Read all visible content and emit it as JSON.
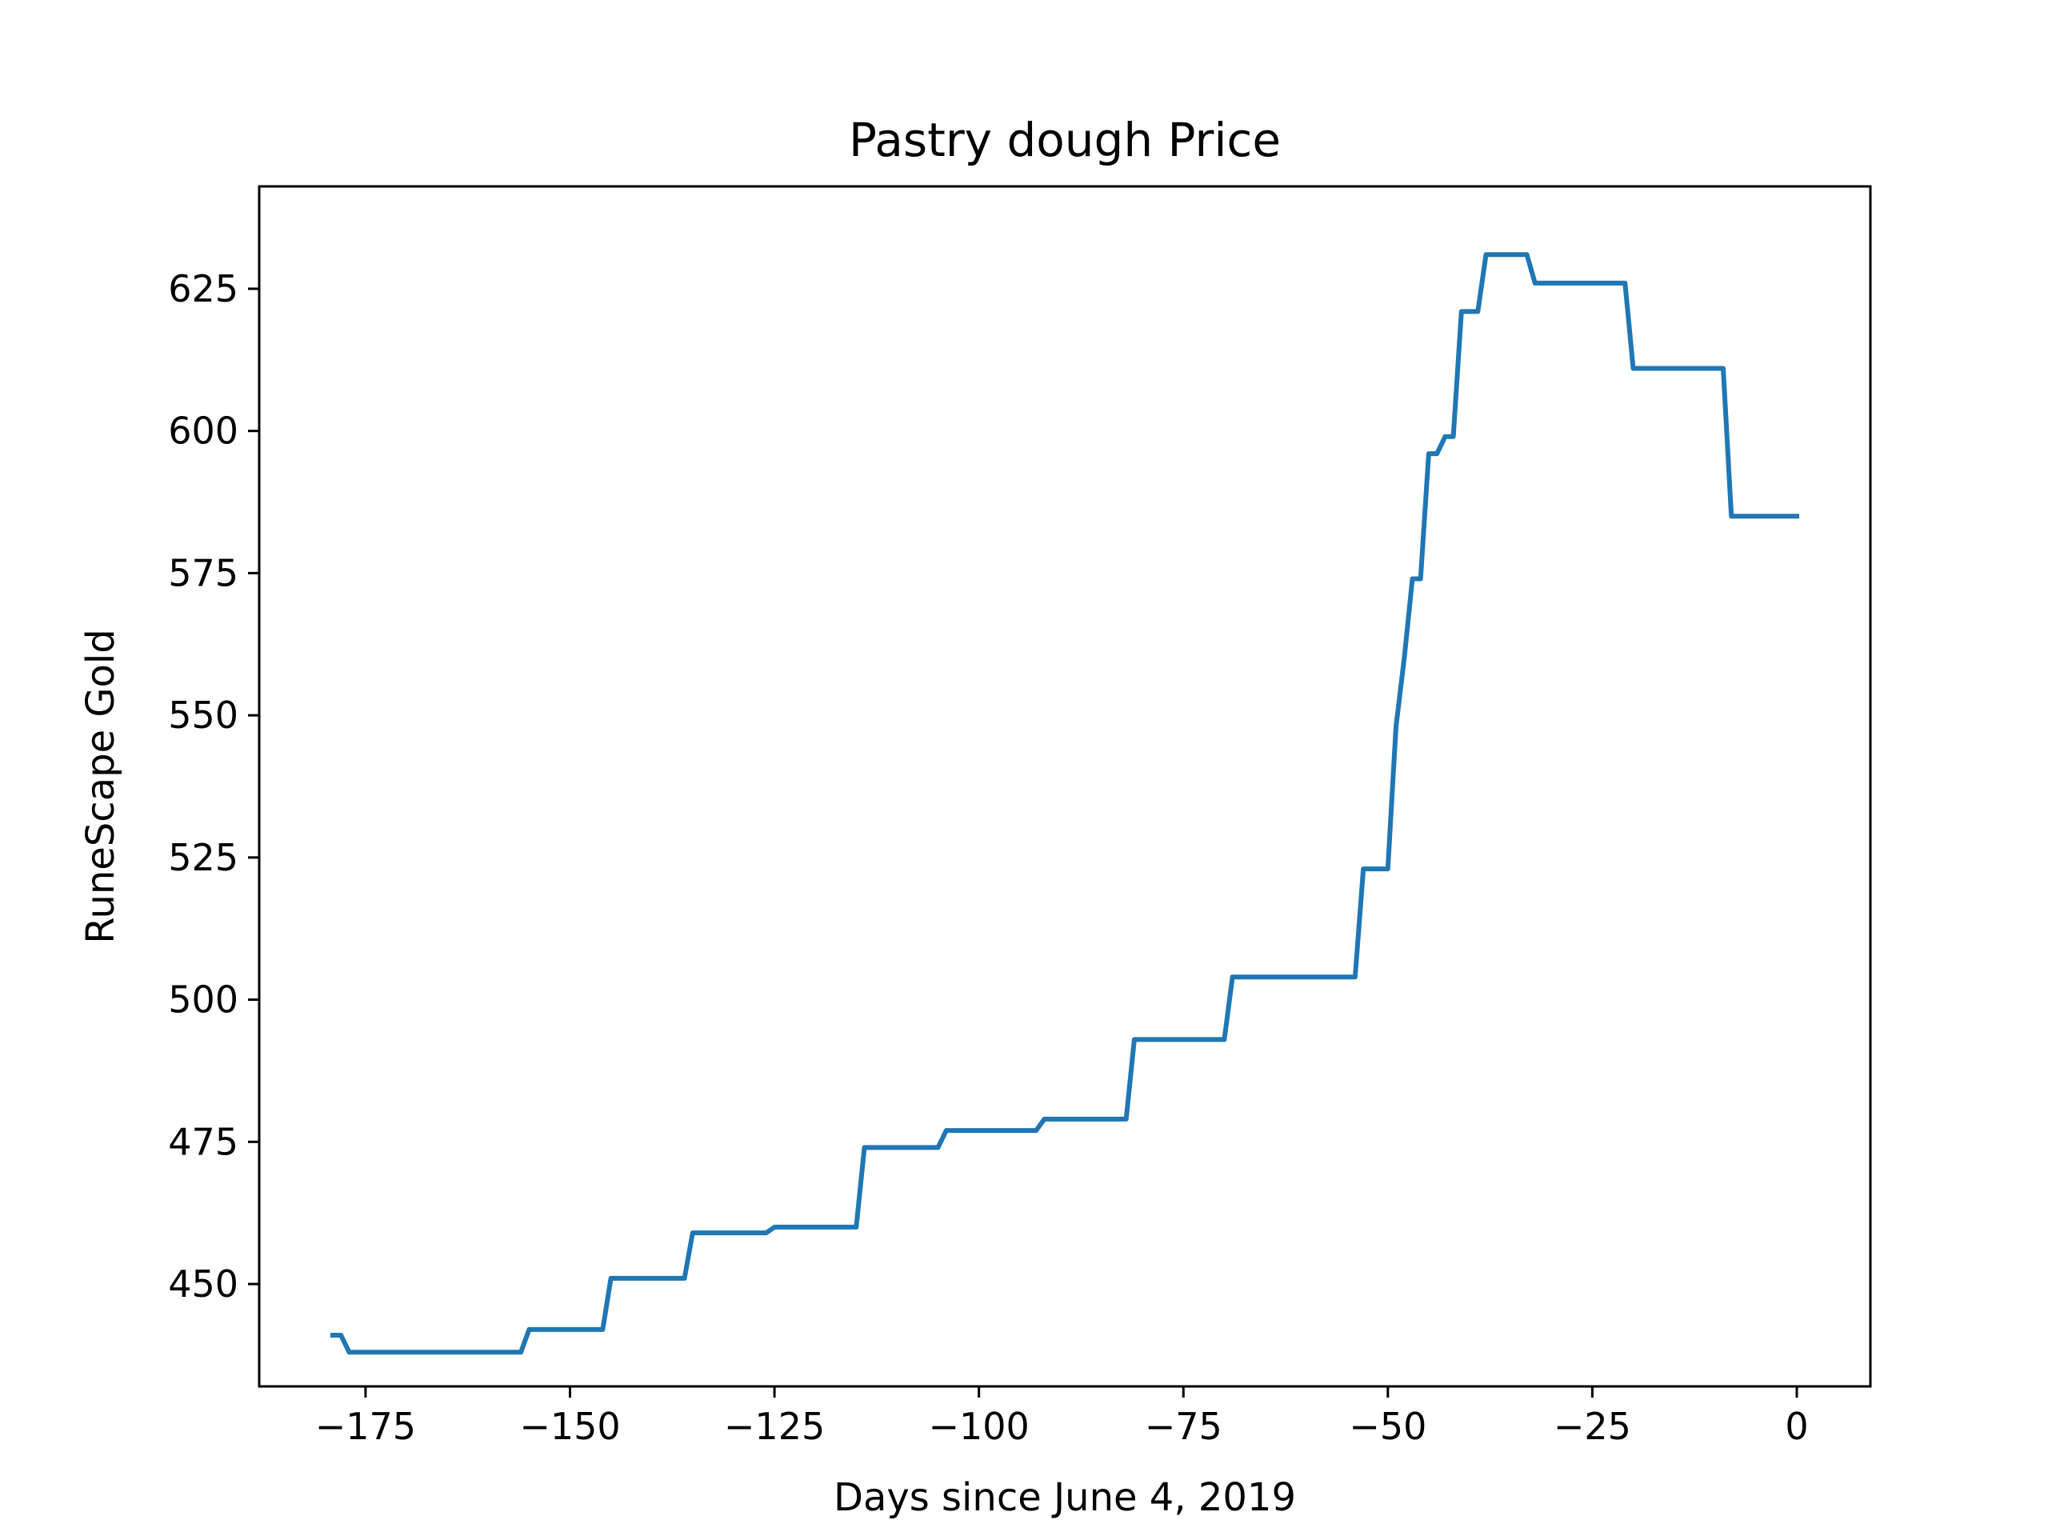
{
  "chart_data": {
    "type": "line",
    "title": "Pastry dough Price",
    "xlabel": "Days since June 4, 2019",
    "ylabel": "RuneScape Gold",
    "xlim": [
      -188,
      9
    ],
    "ylim": [
      432,
      643
    ],
    "xticks": [
      {
        "value": -175,
        "label": "−175"
      },
      {
        "value": -150,
        "label": "−150"
      },
      {
        "value": -125,
        "label": "−125"
      },
      {
        "value": -100,
        "label": "−100"
      },
      {
        "value": -75,
        "label": "−75"
      },
      {
        "value": -50,
        "label": "−50"
      },
      {
        "value": -25,
        "label": "−25"
      },
      {
        "value": 0,
        "label": "0"
      }
    ],
    "yticks": [
      {
        "value": 450,
        "label": "450"
      },
      {
        "value": 475,
        "label": "475"
      },
      {
        "value": 500,
        "label": "500"
      },
      {
        "value": 525,
        "label": "525"
      },
      {
        "value": 550,
        "label": "550"
      },
      {
        "value": 575,
        "label": "575"
      },
      {
        "value": 600,
        "label": "600"
      },
      {
        "value": 625,
        "label": "625"
      }
    ],
    "grid": false,
    "series": [
      {
        "color": "#1f77b4",
        "x": [
          -179,
          -178,
          -177,
          -156,
          -155,
          -146,
          -145,
          -136,
          -135,
          -126,
          -125,
          -115,
          -114,
          -105,
          -104,
          -93,
          -92,
          -82,
          -81,
          -70,
          -69,
          -54,
          -53,
          -50,
          -49,
          -48,
          -47,
          -46,
          -45,
          -44,
          -43,
          -42,
          -41,
          -39,
          -38,
          -33,
          -32,
          -21,
          -20,
          -9,
          -8,
          0
        ],
        "y": [
          441,
          441,
          438,
          438,
          442,
          442,
          451,
          451,
          459,
          459,
          460,
          460,
          474,
          474,
          477,
          477,
          479,
          479,
          493,
          493,
          504,
          504,
          523,
          523,
          548,
          560,
          574,
          574,
          596,
          596,
          599,
          599,
          621,
          621,
          631,
          631,
          626,
          626,
          611,
          611,
          585,
          585
        ]
      }
    ]
  }
}
